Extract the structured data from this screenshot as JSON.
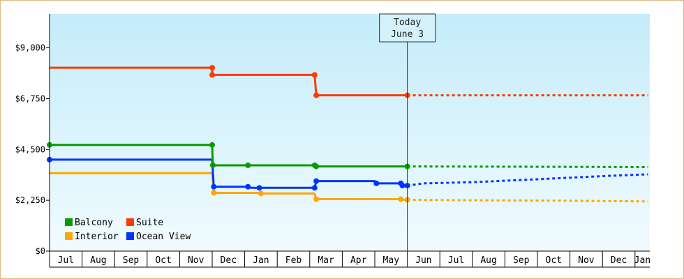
{
  "chart_data": {
    "type": "line",
    "x_unit": "month",
    "x_start": "Jul",
    "x_ticks": [
      "Jul",
      "Aug",
      "Sep",
      "Oct",
      "Nov",
      "Dec",
      "Jan",
      "Feb",
      "Mar",
      "Apr",
      "May",
      "Jun",
      "Jul",
      "Aug",
      "Sep",
      "Oct",
      "Nov",
      "Dec",
      "Jan"
    ],
    "y_ticks": [
      "$0",
      "$2,250",
      "$4,500",
      "$6,750",
      "$9,000"
    ],
    "ylim": [
      0,
      10500
    ],
    "today_label": [
      "Today",
      "June 3"
    ],
    "today_x": 11.0,
    "legend_position": "bottom-left",
    "series": [
      {
        "name": "Suite",
        "color": "#ff3a00",
        "actual": [
          [
            0,
            8120
          ],
          [
            5.0,
            8120
          ],
          [
            5.0,
            7800
          ],
          [
            8.15,
            7800
          ],
          [
            8.2,
            6900
          ],
          [
            11.0,
            6900
          ]
        ],
        "markers": [
          [
            5.0,
            8120
          ],
          [
            5.0,
            7800
          ],
          [
            8.15,
            7800
          ],
          [
            8.2,
            6900
          ],
          [
            11.0,
            6900
          ]
        ],
        "forecast": [
          [
            11.0,
            6900
          ],
          [
            18.4,
            6900
          ]
        ]
      },
      {
        "name": "Balcony",
        "color": "#0a9a00",
        "actual": [
          [
            0,
            4700
          ],
          [
            5.0,
            4700
          ],
          [
            5.02,
            3800
          ],
          [
            8.15,
            3800
          ],
          [
            8.2,
            3750
          ],
          [
            11.0,
            3750
          ]
        ],
        "markers": [
          [
            0,
            4700
          ],
          [
            5.0,
            4700
          ],
          [
            5.02,
            3800
          ],
          [
            6.1,
            3800
          ],
          [
            8.15,
            3800
          ],
          [
            8.2,
            3750
          ],
          [
            11.0,
            3750
          ]
        ],
        "forecast": [
          [
            11.0,
            3750
          ],
          [
            18.4,
            3720
          ]
        ]
      },
      {
        "name": "Ocean View",
        "color": "#0033ff",
        "actual": [
          [
            0,
            4050
          ],
          [
            5.0,
            4050
          ],
          [
            5.05,
            2850
          ],
          [
            6.1,
            2850
          ],
          [
            6.2,
            2800
          ],
          [
            8.15,
            2800
          ],
          [
            8.2,
            3100
          ],
          [
            10.0,
            3100
          ],
          [
            10.05,
            3000
          ],
          [
            10.8,
            3000
          ],
          [
            10.85,
            2900
          ],
          [
            11.0,
            2900
          ]
        ],
        "markers": [
          [
            0,
            4050
          ],
          [
            5.05,
            2850
          ],
          [
            6.1,
            2850
          ],
          [
            6.45,
            2800
          ],
          [
            8.15,
            2800
          ],
          [
            8.2,
            3100
          ],
          [
            10.05,
            3000
          ],
          [
            10.8,
            3000
          ],
          [
            10.85,
            2900
          ],
          [
            11.0,
            2900
          ]
        ],
        "forecast": [
          [
            11.0,
            2900
          ],
          [
            11.5,
            3000
          ],
          [
            13.0,
            3050
          ],
          [
            15.0,
            3180
          ],
          [
            17.0,
            3320
          ],
          [
            18.4,
            3400
          ]
        ]
      },
      {
        "name": "Interior",
        "color": "#ffa500",
        "actual": [
          [
            0,
            3450
          ],
          [
            5.0,
            3450
          ],
          [
            5.05,
            2580
          ],
          [
            6.45,
            2580
          ],
          [
            6.5,
            2550
          ],
          [
            8.15,
            2550
          ],
          [
            8.2,
            2300
          ],
          [
            10.8,
            2300
          ],
          [
            10.85,
            2270
          ],
          [
            11.0,
            2270
          ]
        ],
        "markers": [
          [
            5.05,
            2580
          ],
          [
            6.5,
            2550
          ],
          [
            8.2,
            2300
          ],
          [
            10.8,
            2300
          ],
          [
            11.0,
            2270
          ]
        ],
        "forecast": [
          [
            11.0,
            2270
          ],
          [
            13.0,
            2250
          ],
          [
            16.0,
            2230
          ],
          [
            18.4,
            2200
          ]
        ]
      }
    ],
    "legend": [
      {
        "label": "Balcony",
        "color": "#0a9a00"
      },
      {
        "label": "Suite",
        "color": "#ff3a00"
      },
      {
        "label": "Interior",
        "color": "#ffa500"
      },
      {
        "label": "Ocean View",
        "color": "#0033ff"
      }
    ]
  }
}
